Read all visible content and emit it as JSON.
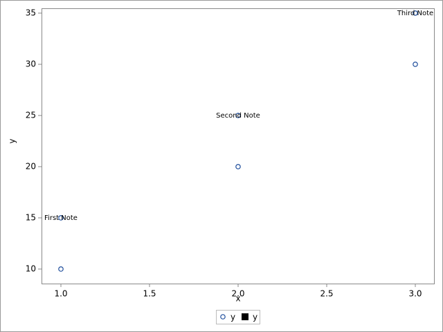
{
  "chart_data": {
    "type": "scatter",
    "x_label": "x",
    "y_label": "y",
    "xlim": [
      0.8906,
      3.1094
    ],
    "ylim": [
      8.58,
      35.47
    ],
    "xticks": [
      {
        "value": 1.0,
        "label": "1.0"
      },
      {
        "value": 1.5,
        "label": "1.5"
      },
      {
        "value": 2.0,
        "label": "2.0"
      },
      {
        "value": 2.5,
        "label": "2.5"
      },
      {
        "value": 3.0,
        "label": "3.0"
      }
    ],
    "yticks": [
      10,
      15,
      20,
      25,
      30,
      35
    ],
    "series": [
      {
        "name": "y",
        "marker": "circle",
        "color": "#1f4e9c",
        "x": [
          1,
          1,
          2,
          2,
          3,
          3
        ],
        "values": [
          10,
          15,
          20,
          25,
          30,
          35
        ]
      },
      {
        "name": "y",
        "marker": "square",
        "color": "#000000",
        "x": [
          1,
          2,
          3
        ],
        "values": [
          15,
          25,
          35
        ],
        "labels": [
          "First Note",
          "Second Note",
          "Third Note"
        ]
      }
    ]
  }
}
